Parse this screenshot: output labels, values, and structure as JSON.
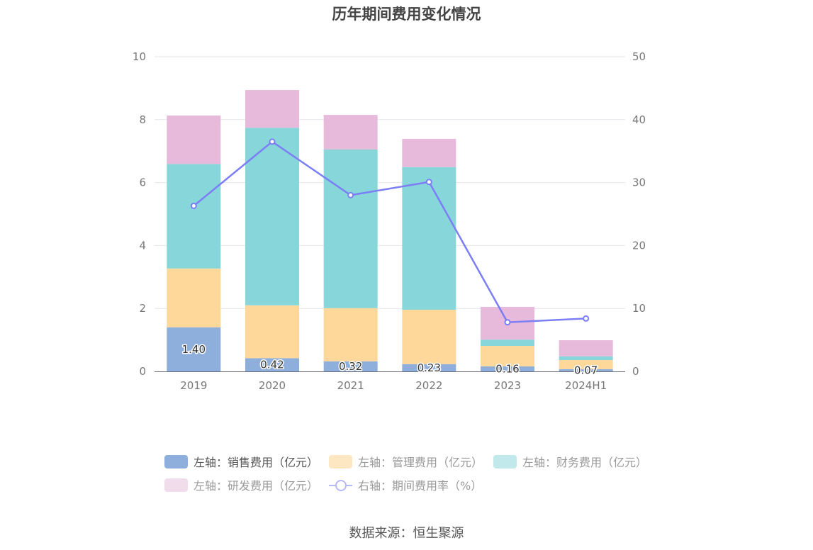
{
  "title": "历年期间费用变化情况",
  "source": "数据来源：恒生聚源",
  "chart_data": {
    "type": "bar",
    "stacked": true,
    "categories": [
      "2019",
      "2020",
      "2021",
      "2022",
      "2023",
      "2024H1"
    ],
    "left_axis": {
      "ylim": [
        0,
        10
      ],
      "ticks": [
        "0",
        "2",
        "4",
        "6",
        "8",
        "10"
      ]
    },
    "right_axis": {
      "ylim": [
        0,
        50
      ],
      "ticks": [
        "0",
        "10",
        "20",
        "30",
        "40",
        "50"
      ]
    },
    "grid": true,
    "legend_position": "bottom",
    "series": [
      {
        "name": "左轴：销售费用（亿元）",
        "axis": "left",
        "color": "#8eaedc",
        "values": [
          1.4,
          0.42,
          0.32,
          0.23,
          0.16,
          0.07
        ],
        "labels": [
          "1.40",
          "0.42",
          "0.32",
          "0.23",
          "0.16",
          "0.07"
        ]
      },
      {
        "name": "左轴：管理费用（亿元）",
        "axis": "left",
        "color": "#fdd89a",
        "values": [
          1.87,
          1.68,
          1.69,
          1.73,
          0.65,
          0.29
        ]
      },
      {
        "name": "左轴：财务费用（亿元）",
        "axis": "left",
        "color": "#87d6da",
        "values": [
          3.32,
          5.64,
          5.04,
          4.53,
          0.2,
          0.12
        ]
      },
      {
        "name": "左轴：研发费用（亿元）",
        "axis": "left",
        "color": "#e7b9da",
        "values": [
          1.54,
          1.2,
          1.1,
          0.9,
          1.04,
          0.51
        ]
      },
      {
        "name": "右轴：期间费用率（%）",
        "axis": "right",
        "type": "line",
        "color": "#7b7ef5",
        "values": [
          26.3,
          36.5,
          28.0,
          30.1,
          7.8,
          8.4
        ]
      }
    ]
  },
  "legend": [
    {
      "label": "左轴：销售费用（亿元）",
      "color": "#8eaedc",
      "kind": "bar"
    },
    {
      "label": "左轴：管理费用（亿元）",
      "color": "#fde6c2",
      "kind": "bar"
    },
    {
      "label": "左轴：财务费用（亿元）",
      "color": "#c1e8eb",
      "kind": "bar"
    },
    {
      "label": "左轴：研发费用（亿元）",
      "color": "#f1dcec",
      "kind": "bar"
    },
    {
      "label": "右轴：期间费用率（%）",
      "color": "#b6b8f8",
      "kind": "line"
    }
  ]
}
